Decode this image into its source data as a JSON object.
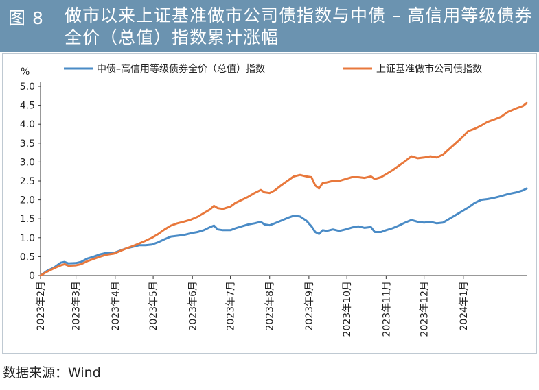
{
  "header": {
    "figure_label": "图 8",
    "title": "做市以来上证基准做市公司债指数与中债 – 高信用等级债券全价（总值）指数累计涨幅"
  },
  "source": "数据来源：Wind",
  "colors": {
    "header_bg": "#6b93b0",
    "series_blue": "#4a8bc6",
    "series_orange": "#e8783c"
  },
  "chart_data": {
    "type": "line",
    "y_unit": "%",
    "ylim": [
      0,
      5.0
    ],
    "y_ticks": [
      "0",
      "0.5",
      "1.0",
      "1.5",
      "2.0",
      "2.5",
      "3.0",
      "3.5",
      "4.0",
      "4.5",
      "5.0"
    ],
    "x_ticks": [
      "2023年2月",
      "2023年3月",
      "2023年4月",
      "2023年5月",
      "2023年6月",
      "2023年7月",
      "2023年8月",
      "2023年9月",
      "2023年10月",
      "2023年11月",
      "2023年12月",
      "2024年1月"
    ],
    "x_range": [
      "2023-02-01",
      "2024-02-20"
    ],
    "legend_position": "top",
    "grid": false,
    "series": [
      {
        "name": "中债–高信用等级债券全价（总值）指数",
        "color": "#4a8bc6",
        "points": [
          [
            "2023-02-01",
            0.0
          ],
          [
            "2023-02-06",
            0.12
          ],
          [
            "2023-02-12",
            0.22
          ],
          [
            "2023-02-17",
            0.34
          ],
          [
            "2023-02-20",
            0.36
          ],
          [
            "2023-02-23",
            0.32
          ],
          [
            "2023-03-01",
            0.33
          ],
          [
            "2023-03-05",
            0.36
          ],
          [
            "2023-03-10",
            0.45
          ],
          [
            "2023-03-15",
            0.5
          ],
          [
            "2023-03-20",
            0.56
          ],
          [
            "2023-03-25",
            0.6
          ],
          [
            "2023-03-31",
            0.6
          ],
          [
            "2023-04-05",
            0.66
          ],
          [
            "2023-04-10",
            0.72
          ],
          [
            "2023-04-15",
            0.76
          ],
          [
            "2023-04-20",
            0.8
          ],
          [
            "2023-04-25",
            0.8
          ],
          [
            "2023-04-30",
            0.82
          ],
          [
            "2023-05-05",
            0.88
          ],
          [
            "2023-05-10",
            0.96
          ],
          [
            "2023-05-15",
            1.03
          ],
          [
            "2023-05-20",
            1.05
          ],
          [
            "2023-05-25",
            1.07
          ],
          [
            "2023-05-31",
            1.12
          ],
          [
            "2023-06-05",
            1.15
          ],
          [
            "2023-06-10",
            1.2
          ],
          [
            "2023-06-15",
            1.28
          ],
          [
            "2023-06-18",
            1.32
          ],
          [
            "2023-06-21",
            1.22
          ],
          [
            "2023-06-25",
            1.2
          ],
          [
            "2023-07-01",
            1.2
          ],
          [
            "2023-07-05",
            1.25
          ],
          [
            "2023-07-10",
            1.3
          ],
          [
            "2023-07-15",
            1.35
          ],
          [
            "2023-07-20",
            1.38
          ],
          [
            "2023-07-25",
            1.42
          ],
          [
            "2023-07-28",
            1.35
          ],
          [
            "2023-08-01",
            1.33
          ],
          [
            "2023-08-05",
            1.38
          ],
          [
            "2023-08-10",
            1.45
          ],
          [
            "2023-08-15",
            1.52
          ],
          [
            "2023-08-20",
            1.58
          ],
          [
            "2023-08-25",
            1.56
          ],
          [
            "2023-08-30",
            1.45
          ],
          [
            "2023-09-03",
            1.3
          ],
          [
            "2023-09-06",
            1.15
          ],
          [
            "2023-09-09",
            1.1
          ],
          [
            "2023-09-12",
            1.2
          ],
          [
            "2023-09-15",
            1.18
          ],
          [
            "2023-09-20",
            1.22
          ],
          [
            "2023-09-25",
            1.18
          ],
          [
            "2023-09-30",
            1.22
          ],
          [
            "2023-10-05",
            1.27
          ],
          [
            "2023-10-10",
            1.3
          ],
          [
            "2023-10-15",
            1.26
          ],
          [
            "2023-10-20",
            1.28
          ],
          [
            "2023-10-23",
            1.15
          ],
          [
            "2023-10-28",
            1.15
          ],
          [
            "2023-11-01",
            1.2
          ],
          [
            "2023-11-06",
            1.25
          ],
          [
            "2023-11-11",
            1.32
          ],
          [
            "2023-11-16",
            1.4
          ],
          [
            "2023-11-21",
            1.47
          ],
          [
            "2023-11-26",
            1.42
          ],
          [
            "2023-12-01",
            1.4
          ],
          [
            "2023-12-06",
            1.42
          ],
          [
            "2023-12-11",
            1.38
          ],
          [
            "2023-12-16",
            1.4
          ],
          [
            "2023-12-21",
            1.5
          ],
          [
            "2023-12-26",
            1.6
          ],
          [
            "2023-12-31",
            1.7
          ],
          [
            "2024-01-05",
            1.8
          ],
          [
            "2024-01-10",
            1.92
          ],
          [
            "2024-01-15",
            2.0
          ],
          [
            "2024-01-20",
            2.02
          ],
          [
            "2024-01-25",
            2.05
          ],
          [
            "2024-01-31",
            2.1
          ],
          [
            "2024-02-05",
            2.15
          ],
          [
            "2024-02-12",
            2.2
          ],
          [
            "2024-02-17",
            2.25
          ],
          [
            "2024-02-20",
            2.3
          ]
        ]
      },
      {
        "name": "上证基准做市公司债指数",
        "color": "#e8783c",
        "points": [
          [
            "2023-02-01",
            0.0
          ],
          [
            "2023-02-06",
            0.1
          ],
          [
            "2023-02-12",
            0.2
          ],
          [
            "2023-02-17",
            0.27
          ],
          [
            "2023-02-20",
            0.3
          ],
          [
            "2023-02-23",
            0.26
          ],
          [
            "2023-03-01",
            0.27
          ],
          [
            "2023-03-05",
            0.3
          ],
          [
            "2023-03-10",
            0.38
          ],
          [
            "2023-03-15",
            0.44
          ],
          [
            "2023-03-20",
            0.5
          ],
          [
            "2023-03-25",
            0.55
          ],
          [
            "2023-03-31",
            0.58
          ],
          [
            "2023-04-05",
            0.65
          ],
          [
            "2023-04-10",
            0.72
          ],
          [
            "2023-04-15",
            0.78
          ],
          [
            "2023-04-20",
            0.85
          ],
          [
            "2023-04-25",
            0.92
          ],
          [
            "2023-04-30",
            1.0
          ],
          [
            "2023-05-05",
            1.1
          ],
          [
            "2023-05-10",
            1.22
          ],
          [
            "2023-05-15",
            1.32
          ],
          [
            "2023-05-20",
            1.38
          ],
          [
            "2023-05-25",
            1.42
          ],
          [
            "2023-05-31",
            1.48
          ],
          [
            "2023-06-05",
            1.55
          ],
          [
            "2023-06-10",
            1.65
          ],
          [
            "2023-06-15",
            1.75
          ],
          [
            "2023-06-18",
            1.84
          ],
          [
            "2023-06-21",
            1.78
          ],
          [
            "2023-06-25",
            1.76
          ],
          [
            "2023-07-01",
            1.82
          ],
          [
            "2023-07-05",
            1.92
          ],
          [
            "2023-07-10",
            2.0
          ],
          [
            "2023-07-15",
            2.08
          ],
          [
            "2023-07-20",
            2.18
          ],
          [
            "2023-07-25",
            2.26
          ],
          [
            "2023-07-28",
            2.2
          ],
          [
            "2023-08-01",
            2.18
          ],
          [
            "2023-08-05",
            2.25
          ],
          [
            "2023-08-10",
            2.38
          ],
          [
            "2023-08-15",
            2.5
          ],
          [
            "2023-08-20",
            2.62
          ],
          [
            "2023-08-25",
            2.66
          ],
          [
            "2023-08-30",
            2.62
          ],
          [
            "2023-09-03",
            2.6
          ],
          [
            "2023-09-06",
            2.38
          ],
          [
            "2023-09-09",
            2.3
          ],
          [
            "2023-09-12",
            2.45
          ],
          [
            "2023-09-15",
            2.46
          ],
          [
            "2023-09-20",
            2.5
          ],
          [
            "2023-09-25",
            2.5
          ],
          [
            "2023-09-30",
            2.55
          ],
          [
            "2023-10-05",
            2.6
          ],
          [
            "2023-10-10",
            2.6
          ],
          [
            "2023-10-15",
            2.58
          ],
          [
            "2023-10-20",
            2.62
          ],
          [
            "2023-10-23",
            2.55
          ],
          [
            "2023-10-28",
            2.6
          ],
          [
            "2023-11-01",
            2.68
          ],
          [
            "2023-11-06",
            2.78
          ],
          [
            "2023-11-11",
            2.9
          ],
          [
            "2023-11-16",
            3.02
          ],
          [
            "2023-11-21",
            3.15
          ],
          [
            "2023-11-26",
            3.1
          ],
          [
            "2023-12-01",
            3.12
          ],
          [
            "2023-12-06",
            3.15
          ],
          [
            "2023-12-11",
            3.12
          ],
          [
            "2023-12-16",
            3.2
          ],
          [
            "2023-12-21",
            3.35
          ],
          [
            "2023-12-26",
            3.5
          ],
          [
            "2023-12-31",
            3.65
          ],
          [
            "2024-01-05",
            3.82
          ],
          [
            "2024-01-10",
            3.88
          ],
          [
            "2024-01-15",
            3.96
          ],
          [
            "2024-01-20",
            4.06
          ],
          [
            "2024-01-25",
            4.12
          ],
          [
            "2024-01-31",
            4.2
          ],
          [
            "2024-02-05",
            4.32
          ],
          [
            "2024-02-12",
            4.42
          ],
          [
            "2024-02-17",
            4.48
          ],
          [
            "2024-02-20",
            4.56
          ]
        ]
      }
    ]
  }
}
